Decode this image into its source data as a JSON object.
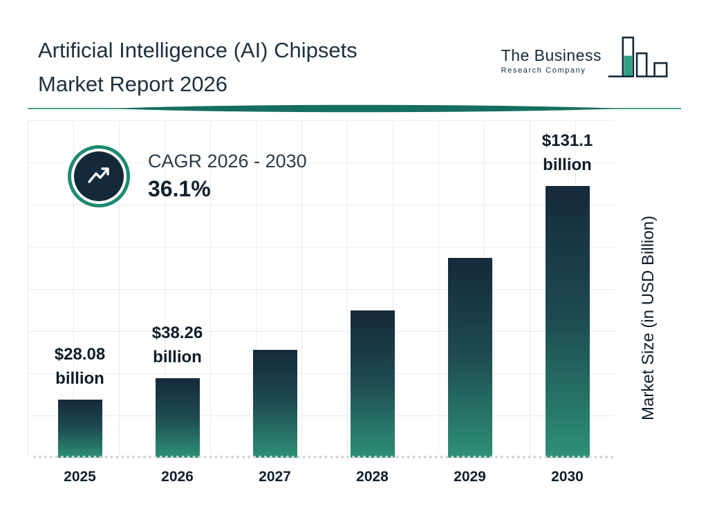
{
  "header": {
    "title_line1": "Artificial Intelligence (AI) Chipsets",
    "title_line2": "Market Report 2026",
    "logo": {
      "line1": "The Business",
      "line2": "Research Company"
    }
  },
  "cagr": {
    "label": "CAGR 2026 - 2030",
    "value": "36.1%"
  },
  "chart_data": {
    "type": "bar",
    "title": "Artificial Intelligence (AI) Chipsets Market Report 2026",
    "categories": [
      "2025",
      "2026",
      "2027",
      "2028",
      "2029",
      "2030"
    ],
    "values": [
      28.08,
      38.26,
      52.07,
      70.87,
      96.46,
      131.1
    ],
    "bar_labels": [
      {
        "value": "$28.08",
        "unit": "billion"
      },
      {
        "value": "$38.26",
        "unit": "billion"
      },
      null,
      null,
      null,
      {
        "value": "$131.1",
        "unit": "billion"
      }
    ],
    "xlabel": "",
    "ylabel": "Market Size (in USD Billion)",
    "ylim": [
      0,
      140
    ],
    "grid": true,
    "legend": false,
    "colors": {
      "bar_gradient_top": "#15293b",
      "bar_gradient_bottom": "#2e9077",
      "accent_teal": "#1d8a71",
      "dark_navy": "#13293a"
    }
  }
}
